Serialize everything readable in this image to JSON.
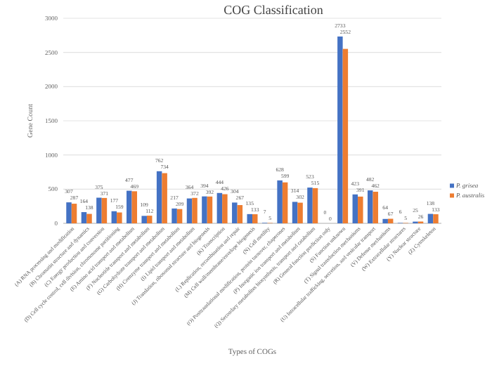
{
  "chart_data": {
    "type": "bar",
    "title": "COG Classification",
    "xlabel": "Types of COGs",
    "ylabel": "Gene Count",
    "categories": [
      "(A) RNA processing and modification",
      "(B) Chromatin structure and dynamics",
      "(C) Energy production and conversion",
      "(D) Cell cycle control, cell division, chromosome partitioning",
      "(E) Amino acid transport and metabolism",
      "(F) Nucleotide transport and metabolism",
      "(G) Carbohydrate transport and metabolism",
      "(H) Coenzyme transport and metabolism",
      "(I) Lipid transport and metabolism",
      "(J) Translation, ribosomal structure and biogenesis",
      "(K) Transcription",
      "(L) Replication, recombination and repair",
      "(M) Cell wall/membrane/envelope biogenesis",
      "(N) Cell motility",
      "(O) Posttranslational modification, protein turnover, chaperones",
      "(P) Inorganic ion transport and metabolism",
      "(Q) Secondary metabolites biosynthesis, transport and catabolism",
      "(R) General function prediction only",
      "(S) Function unknown",
      "(T) Signal transduction mechanisms",
      "(U) Intracellular trafficking, secretion, and vesicular transport",
      "(V) Defense mechanisms",
      "(W) Extracellular structures",
      "(Y) Nuclear structure",
      "(Z) Cytoskeleton"
    ],
    "series": [
      {
        "name": "P. grisea",
        "color": "#4472c4",
        "values": [
          307,
          164,
          375,
          177,
          477,
          109,
          762,
          217,
          364,
          394,
          444,
          304,
          135,
          7,
          628,
          314,
          523,
          0,
          2733,
          423,
          482,
          64,
          6,
          25,
          138
        ]
      },
      {
        "name": "P. australis",
        "color": "#ed7d31",
        "values": [
          287,
          138,
          371,
          159,
          469,
          112,
          734,
          209,
          372,
          392,
          426,
          267,
          133,
          5,
          599,
          302,
          515,
          0,
          2552,
          391,
          462,
          67,
          5,
          26,
          133
        ]
      }
    ],
    "ylim": [
      0,
      3000
    ],
    "yticks": [
      0,
      500,
      1000,
      1500,
      2000,
      2500,
      3000
    ],
    "grid": "y",
    "legend": "right",
    "data_labels": true
  }
}
